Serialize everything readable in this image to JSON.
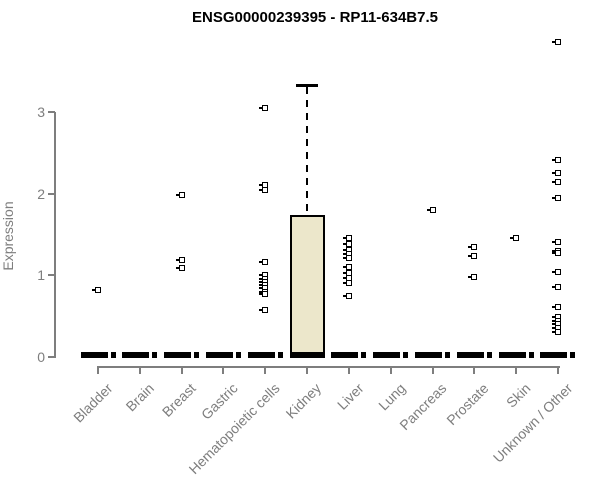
{
  "title": "ENSG00000239395 - RP11-634B7.5",
  "chart_data": {
    "type": "boxplot",
    "title": "ENSG00000239395 - RP11-634B7.5",
    "xlabel": "",
    "ylabel": "Expression",
    "ylim": [
      0,
      3.33
    ],
    "yticks": [
      0,
      1,
      2,
      3
    ],
    "grid": false,
    "legend": "none",
    "point_symbol": "open-square",
    "colors": {
      "axis": "#7e7e7e",
      "box_fill": "#ece7cb",
      "point": "#000000",
      "title": "#000000"
    },
    "categories": [
      "Bladder",
      "Brain",
      "Breast",
      "Gastric",
      "Hematopoietic cells",
      "Kidney",
      "Liver",
      "Lung",
      "Pancreas",
      "Prostate",
      "Skin",
      "Unknown / Other"
    ],
    "groups": [
      {
        "name": "Bladder",
        "box": {
          "collapsed": true,
          "median": 0
        },
        "points": [
          0.82
        ]
      },
      {
        "name": "Brain",
        "box": {
          "collapsed": true,
          "median": 0
        },
        "points": []
      },
      {
        "name": "Breast",
        "box": {
          "collapsed": true,
          "median": 0
        },
        "points": [
          1.98,
          1.19,
          1.09
        ]
      },
      {
        "name": "Gastric",
        "box": {
          "collapsed": true,
          "median": 0
        },
        "points": []
      },
      {
        "name": "Hematopoietic cells",
        "box": {
          "collapsed": true,
          "median": 0
        },
        "points": [
          3.05,
          2.1,
          2.04,
          1.16,
          1.0,
          0.96,
          0.92,
          0.88,
          0.84,
          0.8,
          0.77,
          0.58
        ]
      },
      {
        "name": "Kidney",
        "box": {
          "collapsed": false,
          "low": 0,
          "q1": 0,
          "median": 0,
          "q3": 1.74,
          "high": 3.33
        },
        "points": []
      },
      {
        "name": "Liver",
        "box": {
          "collapsed": true,
          "median": 0
        },
        "points": [
          1.46,
          1.38,
          1.31,
          1.26,
          1.21,
          1.1,
          1.03,
          0.97,
          0.91,
          0.75
        ]
      },
      {
        "name": "Lung",
        "box": {
          "collapsed": true,
          "median": 0
        },
        "points": []
      },
      {
        "name": "Pancreas",
        "box": {
          "collapsed": true,
          "median": 0
        },
        "points": [
          1.8
        ]
      },
      {
        "name": "Prostate",
        "box": {
          "collapsed": true,
          "median": 0
        },
        "points": [
          1.35,
          1.24,
          0.98
        ]
      },
      {
        "name": "Skin",
        "box": {
          "collapsed": true,
          "median": 0
        },
        "points": [
          1.46
        ]
      },
      {
        "name": "Unknown / Other",
        "box": {
          "collapsed": true,
          "median": 0
        },
        "points": [
          3.86,
          2.41,
          2.25,
          2.14,
          1.95,
          1.41,
          1.3,
          1.27,
          1.04,
          0.86,
          0.61,
          0.49,
          0.44,
          0.4,
          0.36,
          0.31
        ]
      }
    ]
  }
}
